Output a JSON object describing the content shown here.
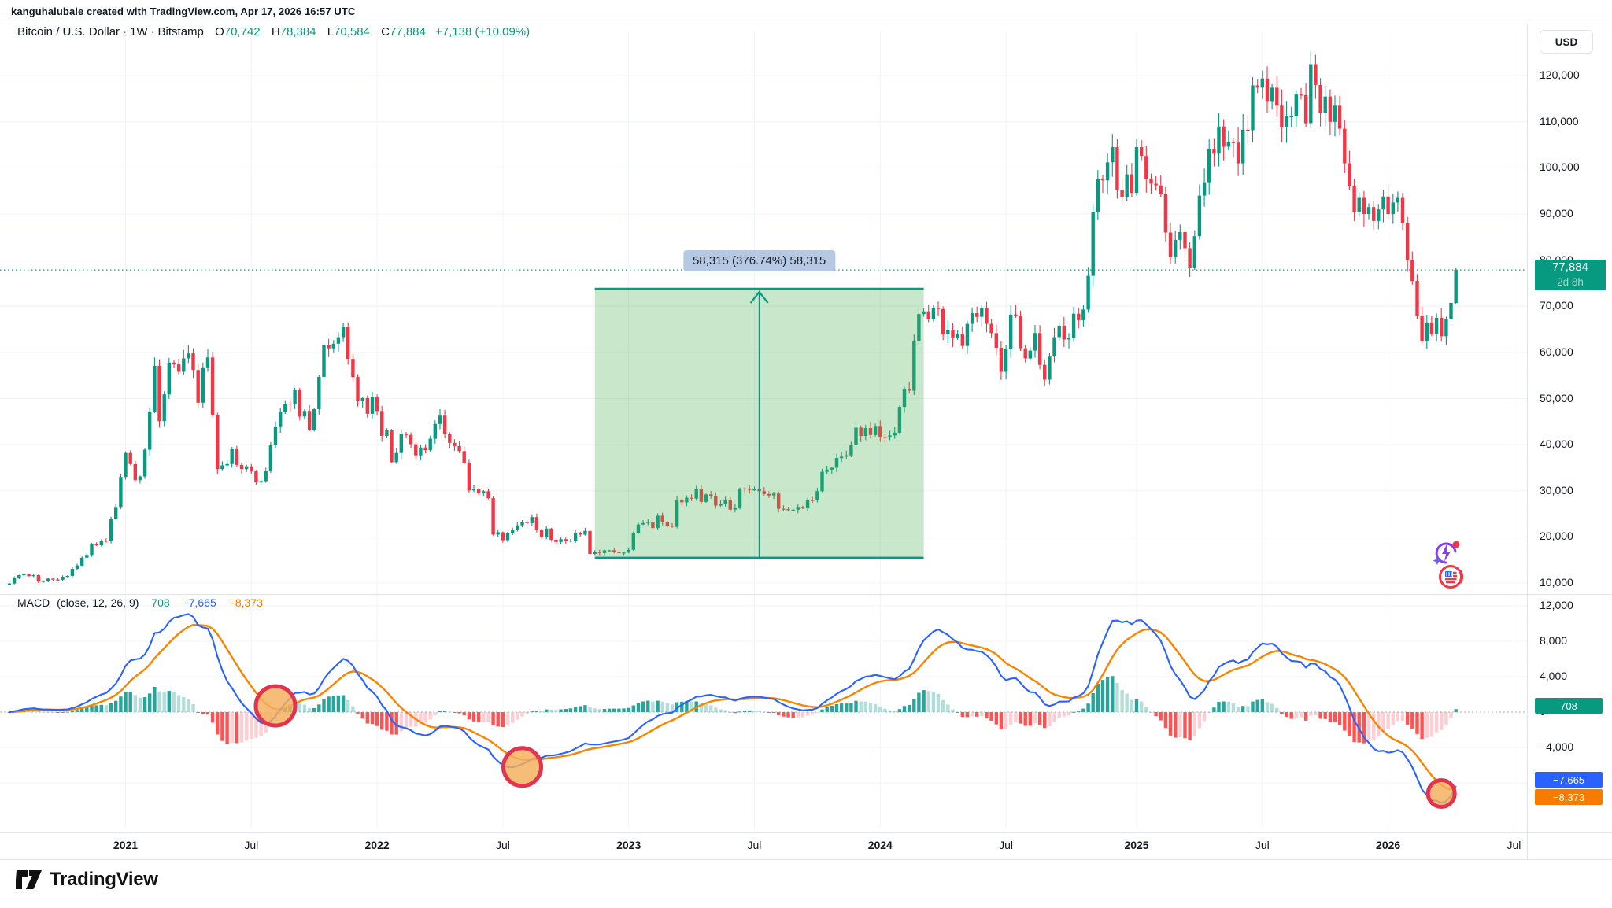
{
  "titlebar": {
    "text": "kanguhalubale created with TradingView.com, Apr 17, 2026 16:57 UTC"
  },
  "symbol_legend": {
    "name": "Bitcoin / U.S. Dollar",
    "interval": "1W",
    "venue": "Bitstamp",
    "o_label": "O",
    "o_value": "70,742",
    "h_label": "H",
    "h_value": "78,384",
    "l_label": "L",
    "l_value": "70,584",
    "c_label": "C",
    "c_value": "77,884",
    "change": "+7,138 (+10.09%)"
  },
  "macd_legend": {
    "title": "MACD",
    "params": "(close, 12, 26, 9)",
    "hist_value": "708",
    "macd_value": "−7,665",
    "signal_value": "−8,373"
  },
  "price_axis": {
    "currency_button": "USD",
    "values": [
      120000,
      110000,
      100000,
      90000,
      80000,
      70000,
      60000,
      50000,
      40000,
      30000,
      20000,
      10000
    ]
  },
  "price_badge": {
    "value": "77,884",
    "countdown": "2d 8h"
  },
  "macd_axis": {
    "values": [
      12000,
      8000,
      4000,
      0,
      -4000,
      -8000
    ]
  },
  "macd_badges": [
    {
      "value": "708",
      "color": "#089981"
    },
    {
      "value": "−7,665",
      "color": "#2962ff"
    },
    {
      "value": "−8,373",
      "color": "#f57c00"
    }
  ],
  "time_axis": [
    {
      "label": "2021",
      "week": 24,
      "bold": true
    },
    {
      "label": "Jul",
      "week": 50,
      "bold": false
    },
    {
      "label": "2022",
      "week": 76,
      "bold": true
    },
    {
      "label": "Jul",
      "week": 102,
      "bold": false
    },
    {
      "label": "2023",
      "week": 128,
      "bold": true
    },
    {
      "label": "Jul",
      "week": 154,
      "bold": false
    },
    {
      "label": "2024",
      "week": 180,
      "bold": true
    },
    {
      "label": "Jul",
      "week": 206,
      "bold": false
    },
    {
      "label": "2025",
      "week": 233,
      "bold": true
    },
    {
      "label": "Jul",
      "week": 259,
      "bold": false
    },
    {
      "label": "2026",
      "week": 285,
      "bold": true
    },
    {
      "label": "Jul",
      "week": 311,
      "bold": false
    }
  ],
  "measure_tool": {
    "label": "58,315 (376.74%) 58,315",
    "price_from": 15479,
    "price_to": 73794,
    "week_from": 121,
    "week_to": 189,
    "range_value": 58315,
    "range_percent": "376.74%"
  },
  "annotation_circles": [
    {
      "week": 55,
      "macd_value": 700,
      "radius": 25
    },
    {
      "week": 106,
      "macd_value": -6200,
      "radius": 24
    },
    {
      "week": 296,
      "macd_value": -9200,
      "radius": 17
    }
  ],
  "icons": [
    {
      "name": "ai-spark-icon"
    },
    {
      "name": "us-flag-events-icon"
    },
    {
      "name": "tradingview-logo-icon"
    }
  ],
  "logo": {
    "text": "TradingView"
  },
  "colors": {
    "candle_up": "#089981",
    "candle_down": "#f23645",
    "macd_line": "#2962ff",
    "signal_line": "#f78500",
    "hist_grow_above": "#26a69a",
    "hist_fall_above": "#b2dfdb",
    "hist_fall_below": "#ff5252",
    "hist_grow_below": "#ffcdd2",
    "grid": "#f0f3fa",
    "separator": "#e0e3eb",
    "price_line": "#089981",
    "measure_fill": "rgba(76,175,80,0.30)",
    "measure_border": "#089981",
    "circle_fill": "rgba(244,174,92,0.82)",
    "circle_stroke": "#e2334f",
    "label_bg": "#b6c9e2"
  },
  "chart_data": {
    "type": "candlestick+macd",
    "title": "Bitcoin / U.S. Dollar 1W Bitstamp",
    "interval": "weekly",
    "x_range": [
      "2020-07",
      "2026-07"
    ],
    "price_axis_range": [
      7600,
      127000
    ],
    "macd_axis_range": [
      -13000,
      13100
    ],
    "grid": true,
    "last_candle": {
      "open": 70742,
      "high": 78384,
      "low": 70584,
      "close": 77884,
      "change": 7138,
      "change_percent": 10.09
    },
    "macd_settings": {
      "source": "close",
      "fast": 12,
      "slow": 26,
      "signal": 9
    },
    "macd_last": {
      "histogram": 708,
      "macd": -7665,
      "signal": -8373
    },
    "weekly_closes": [
      9900,
      11100,
      11700,
      11900,
      11500,
      11700,
      10300,
      10450,
      10950,
      10750,
      10700,
      11350,
      11550,
      13050,
      13800,
      15500,
      16100,
      18400,
      18200,
      19200,
      19150,
      23900,
      26500,
      33000,
      38200,
      35800,
      32300,
      33100,
      38900,
      47200,
      57100,
      45100,
      50900,
      57800,
      57400,
      55800,
      58700,
      59800,
      56200,
      49100,
      56600,
      58900,
      46400,
      34700,
      35500,
      35800,
      39000,
      35600,
      34700,
      35300,
      34200,
      31800,
      32100,
      34300,
      39900,
      43800,
      47100,
      48900,
      48800,
      51800,
      46100,
      47300,
      43200,
      47700,
      54700,
      61600,
      60900,
      61900,
      63300,
      65500,
      58600,
      54700,
      49400,
      50100,
      46700,
      50400,
      47300,
      41900,
      43100,
      36200,
      38200,
      42400,
      42100,
      40100,
      37700,
      39400,
      38800,
      41300,
      44500,
      46300,
      42300,
      40400,
      39700,
      38600,
      36000,
      30100,
      30300,
      29500,
      29900,
      28400,
      20500,
      21000,
      19300,
      20900,
      21600,
      22500,
      23300,
      23000,
      24300,
      21500,
      20000,
      21800,
      19400,
      18900,
      19500,
      19100,
      19200,
      20800,
      20500,
      21300,
      16300,
      16700,
      16500,
      17100,
      17100,
      16800,
      16500,
      16600,
      17200,
      20900,
      22700,
      23000,
      23300,
      21900,
      24600,
      23200,
      22400,
      22200,
      28000,
      27500,
      28500,
      28300,
      30300,
      27600,
      29200,
      28900,
      26800,
      27100,
      28100,
      25900,
      26300,
      30500,
      30400,
      30300,
      30300,
      29900,
      29300,
      29000,
      29400,
      26100,
      26000,
      25900,
      25900,
      26500,
      26200,
      28000,
      27900,
      29900,
      34100,
      34600,
      35000,
      37100,
      37400,
      37700,
      39900,
      43700,
      41900,
      43600,
      42100,
      43900,
      41700,
      41600,
      42000,
      42600,
      48200,
      52100,
      51700,
      62400,
      68300,
      68900,
      67200,
      69600,
      69400,
      63900,
      64900,
      63100,
      63900,
      61400,
      66200,
      68500,
      67700,
      69600,
      66200,
      64200,
      61000,
      55800,
      60800,
      68200,
      67900,
      60900,
      58700,
      60400,
      64200,
      57300,
      54100,
      59100,
      63300,
      65800,
      62800,
      63200,
      68400,
      67000,
      69300,
      76600,
      90500,
      97700,
      97300,
      101200,
      104500,
      95100,
      93700,
      98600,
      94600,
      104500,
      102600,
      97600,
      96600,
      96200,
      94300,
      86000,
      80700,
      84400,
      86100,
      82600,
      78400,
      85200,
      94000,
      96900,
      104100,
      103100,
      109000,
      104600,
      105600,
      105500,
      101000,
      108300,
      108200,
      117900,
      117400,
      119400,
      114500,
      117400,
      113500,
      108800,
      111200,
      111200,
      115900,
      115800,
      109700,
      122500,
      118000,
      112000,
      115500,
      110000,
      113500,
      108500,
      101000,
      96000,
      90500,
      93500,
      90000,
      91500,
      88500,
      91000,
      93800,
      90000,
      92500,
      93500,
      88000,
      80000,
      75500,
      68000,
      62500,
      66500,
      64000,
      67500,
      63500,
      67300,
      70742,
      77884
    ]
  }
}
